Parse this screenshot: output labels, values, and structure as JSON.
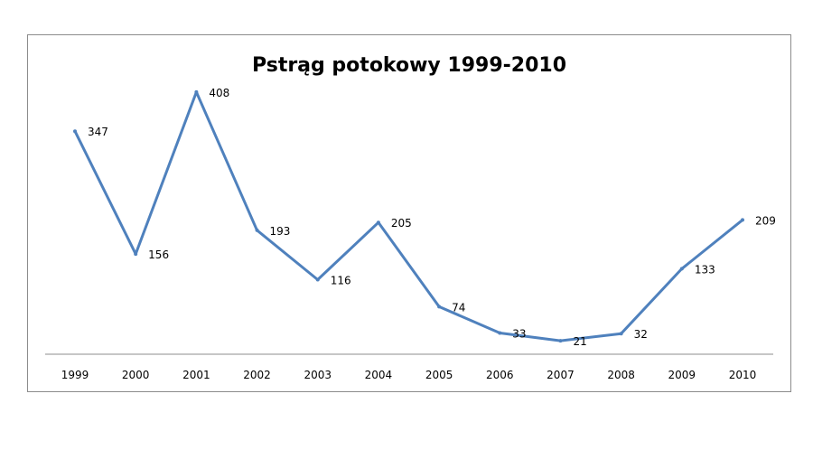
{
  "chart_data": {
    "type": "line",
    "title": "Pstrąg potokowy 1999-2010",
    "categories": [
      "1999",
      "2000",
      "2001",
      "2002",
      "2003",
      "2004",
      "2005",
      "2006",
      "2007",
      "2008",
      "2009",
      "2010"
    ],
    "series": [
      {
        "values": [
          347,
          156,
          408,
          193,
          116,
          205,
          74,
          33,
          21,
          32,
          133,
          209
        ],
        "color": "#4f81bd"
      }
    ],
    "xlabel": "",
    "ylabel": "",
    "ylim": [
      0,
      450
    ],
    "grid": false,
    "legend": "none",
    "data_labels": true
  }
}
